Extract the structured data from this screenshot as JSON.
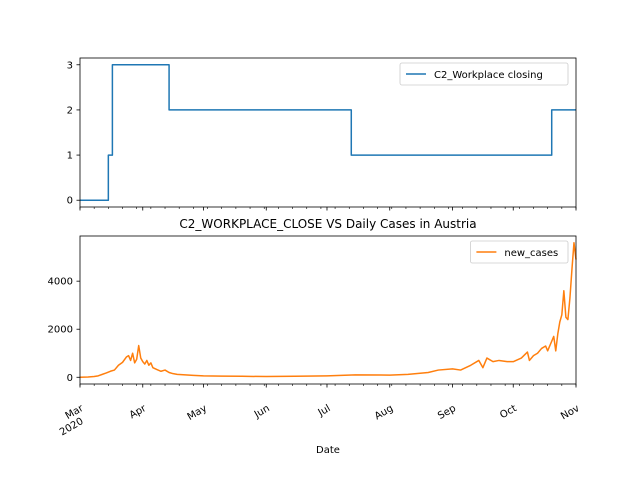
{
  "chart_data": [
    {
      "type": "line",
      "title": "",
      "xlabel": "",
      "ylabel": "",
      "ylim": [
        -0.15,
        3.15
      ],
      "yticks": [
        0,
        1,
        2,
        3
      ],
      "grid": false,
      "legend_position": "top-right",
      "series": [
        {
          "name": "C2_Workplace closing",
          "color": "#1f77b4",
          "step": true,
          "points": [
            [
              "2020-03-01",
              0
            ],
            [
              "2020-03-15",
              0
            ],
            [
              "2020-03-15",
              1
            ],
            [
              "2020-03-17",
              1
            ],
            [
              "2020-03-17",
              3
            ],
            [
              "2020-04-14",
              3
            ],
            [
              "2020-04-14",
              2
            ],
            [
              "2020-07-13",
              2
            ],
            [
              "2020-07-13",
              1
            ],
            [
              "2020-10-20",
              1
            ],
            [
              "2020-10-20",
              2
            ],
            [
              "2020-11-01",
              2
            ]
          ]
        }
      ]
    },
    {
      "type": "line",
      "title": "C2_WORKPLACE_CLOSE VS Daily Cases in Austria",
      "xlabel": "Date",
      "ylabel": "",
      "xlim": [
        "2020-03-01",
        "2020-11-01"
      ],
      "ylim": [
        -280,
        5880
      ],
      "yticks": [
        0,
        2000,
        4000
      ],
      "xticks": [
        {
          "date": "2020-03-01",
          "label": "Mar",
          "sublabel": "2020"
        },
        {
          "date": "2020-04-01",
          "label": "Apr"
        },
        {
          "date": "2020-05-01",
          "label": "May"
        },
        {
          "date": "2020-06-01",
          "label": "Jun"
        },
        {
          "date": "2020-07-01",
          "label": "Jul"
        },
        {
          "date": "2020-08-01",
          "label": "Aug"
        },
        {
          "date": "2020-09-01",
          "label": "Sep"
        },
        {
          "date": "2020-10-01",
          "label": "Oct"
        },
        {
          "date": "2020-11-01",
          "label": "Nov"
        }
      ],
      "grid": false,
      "legend_position": "top-right",
      "series": [
        {
          "name": "new_cases",
          "color": "#ff7f0e",
          "points": [
            [
              "2020-03-01",
              2
            ],
            [
              "2020-03-05",
              10
            ],
            [
              "2020-03-08",
              30
            ],
            [
              "2020-03-10",
              60
            ],
            [
              "2020-03-12",
              120
            ],
            [
              "2020-03-14",
              180
            ],
            [
              "2020-03-16",
              250
            ],
            [
              "2020-03-18",
              300
            ],
            [
              "2020-03-20",
              500
            ],
            [
              "2020-03-22",
              620
            ],
            [
              "2020-03-24",
              850
            ],
            [
              "2020-03-25",
              900
            ],
            [
              "2020-03-26",
              700
            ],
            [
              "2020-03-27",
              1000
            ],
            [
              "2020-03-28",
              600
            ],
            [
              "2020-03-29",
              750
            ],
            [
              "2020-03-30",
              1320
            ],
            [
              "2020-03-31",
              800
            ],
            [
              "2020-04-01",
              650
            ],
            [
              "2020-04-02",
              550
            ],
            [
              "2020-04-03",
              700
            ],
            [
              "2020-04-04",
              500
            ],
            [
              "2020-04-05",
              600
            ],
            [
              "2020-04-06",
              400
            ],
            [
              "2020-04-08",
              320
            ],
            [
              "2020-04-10",
              250
            ],
            [
              "2020-04-12",
              300
            ],
            [
              "2020-04-14",
              200
            ],
            [
              "2020-04-16",
              150
            ],
            [
              "2020-04-18",
              120
            ],
            [
              "2020-04-22",
              100
            ],
            [
              "2020-04-26",
              80
            ],
            [
              "2020-05-01",
              60
            ],
            [
              "2020-05-10",
              50
            ],
            [
              "2020-05-20",
              40
            ],
            [
              "2020-06-01",
              30
            ],
            [
              "2020-06-15",
              40
            ],
            [
              "2020-07-01",
              60
            ],
            [
              "2020-07-15",
              100
            ],
            [
              "2020-08-01",
              90
            ],
            [
              "2020-08-10",
              120
            ],
            [
              "2020-08-20",
              200
            ],
            [
              "2020-08-25",
              300
            ],
            [
              "2020-09-01",
              350
            ],
            [
              "2020-09-05",
              300
            ],
            [
              "2020-09-10",
              500
            ],
            [
              "2020-09-14",
              700
            ],
            [
              "2020-09-16",
              400
            ],
            [
              "2020-09-18",
              800
            ],
            [
              "2020-09-21",
              650
            ],
            [
              "2020-09-24",
              700
            ],
            [
              "2020-09-28",
              650
            ],
            [
              "2020-10-01",
              650
            ],
            [
              "2020-10-05",
              800
            ],
            [
              "2020-10-08",
              1050
            ],
            [
              "2020-10-09",
              700
            ],
            [
              "2020-10-11",
              900
            ],
            [
              "2020-10-13",
              1000
            ],
            [
              "2020-10-15",
              1200
            ],
            [
              "2020-10-17",
              1300
            ],
            [
              "2020-10-18",
              1100
            ],
            [
              "2020-10-20",
              1500
            ],
            [
              "2020-10-21",
              1700
            ],
            [
              "2020-10-22",
              1100
            ],
            [
              "2020-10-23",
              1800
            ],
            [
              "2020-10-24",
              2300
            ],
            [
              "2020-10-25",
              2600
            ],
            [
              "2020-10-26",
              3600
            ],
            [
              "2020-10-27",
              2500
            ],
            [
              "2020-10-28",
              2400
            ],
            [
              "2020-10-29",
              3300
            ],
            [
              "2020-10-30",
              4500
            ],
            [
              "2020-10-31",
              5600
            ],
            [
              "2020-11-01",
              4900
            ]
          ]
        }
      ]
    }
  ]
}
